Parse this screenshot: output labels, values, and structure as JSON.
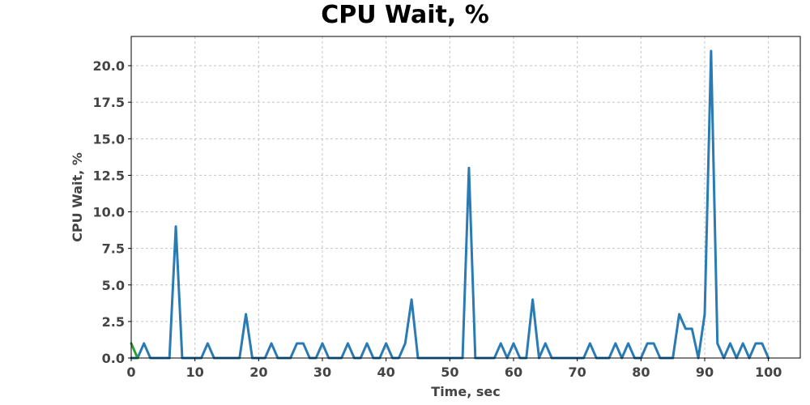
{
  "chart_data": {
    "type": "line",
    "title": "CPU Wait, %",
    "xlabel": "Time, sec",
    "ylabel": "CPU Wait, %",
    "xlim": [
      0,
      105
    ],
    "ylim": [
      0,
      22
    ],
    "xticks": [
      0,
      10,
      20,
      30,
      40,
      50,
      60,
      70,
      80,
      90,
      100
    ],
    "yticks": [
      0.0,
      2.5,
      5.0,
      7.5,
      10.0,
      12.5,
      15.0,
      17.5,
      20.0
    ],
    "grid": true,
    "series": [
      {
        "color": "#2a7bb4",
        "x": [
          0,
          1,
          2,
          3,
          4,
          5,
          6,
          7,
          8,
          9,
          10,
          11,
          12,
          13,
          14,
          15,
          16,
          17,
          18,
          19,
          20,
          21,
          22,
          23,
          24,
          25,
          26,
          27,
          28,
          29,
          30,
          31,
          32,
          33,
          34,
          35,
          36,
          37,
          38,
          39,
          40,
          41,
          42,
          43,
          44,
          45,
          46,
          47,
          48,
          49,
          50,
          51,
          52,
          53,
          54,
          55,
          56,
          57,
          58,
          59,
          60,
          61,
          62,
          63,
          64,
          65,
          66,
          67,
          68,
          69,
          70,
          71,
          72,
          73,
          74,
          75,
          76,
          77,
          78,
          79,
          80,
          81,
          82,
          83,
          84,
          85,
          86,
          87,
          88,
          89,
          90,
          91,
          92,
          93,
          94,
          95,
          96,
          97,
          98,
          99,
          100
        ],
        "values": [
          0,
          0,
          1,
          0,
          0,
          0,
          0,
          9,
          0,
          0,
          0,
          0,
          1,
          0,
          0,
          0,
          0,
          0,
          3,
          0,
          0,
          0,
          1,
          0,
          0,
          0,
          1,
          1,
          0,
          0,
          1,
          0,
          0,
          0,
          1,
          0,
          0,
          1,
          0,
          0,
          1,
          0,
          0,
          1,
          4,
          0,
          0,
          0,
          0,
          0,
          0,
          0,
          0,
          13,
          0,
          0,
          0,
          0,
          1,
          0,
          1,
          0,
          0,
          4,
          0,
          1,
          0,
          0,
          0,
          0,
          0,
          0,
          1,
          0,
          0,
          0,
          1,
          0,
          1,
          0,
          0,
          1,
          1,
          0,
          0,
          0,
          3,
          2,
          2,
          0,
          3,
          21,
          1,
          0,
          1,
          0,
          1,
          0,
          1,
          1,
          0
        ]
      },
      {
        "color": "#2ca02c",
        "x": [
          0,
          1
        ],
        "values": [
          1,
          0
        ]
      }
    ]
  }
}
